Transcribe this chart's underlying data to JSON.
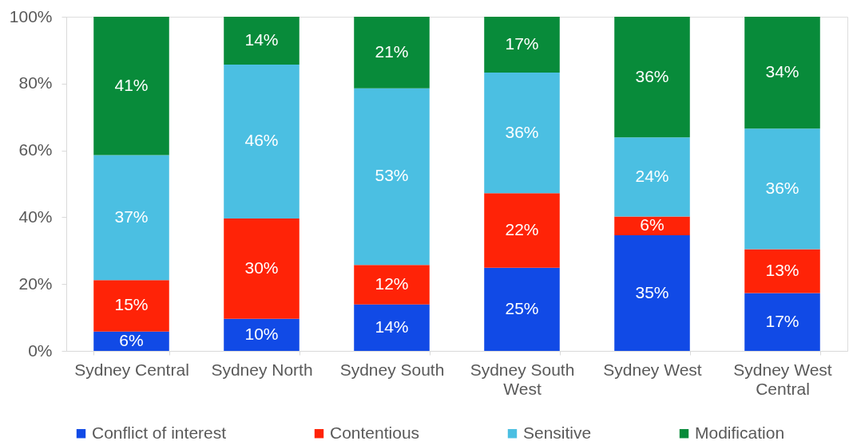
{
  "chart_data": {
    "type": "bar",
    "stacked": true,
    "categories": [
      "Sydney Central",
      "Sydney North",
      "Sydney South",
      "Sydney South West",
      "Sydney West",
      "Sydney West Central"
    ],
    "series": [
      {
        "name": "Conflict of interest",
        "color": "#114ae6",
        "values": [
          5.8,
          9.6,
          13.9,
          24.9,
          34.6,
          17.3
        ],
        "value_labels": [
          "6%",
          "10%",
          "14%",
          "25%",
          "35%",
          "17%"
        ]
      },
      {
        "name": "Contentious",
        "color": "#ff2307",
        "values": [
          15.4,
          30.0,
          11.8,
          22.3,
          5.6,
          13.1
        ],
        "value_labels": [
          "15%",
          "30%",
          "12%",
          "22%",
          "6%",
          "13%"
        ]
      },
      {
        "name": "Sensitive",
        "color": "#4bbfe2",
        "values": [
          37.4,
          46.1,
          52.9,
          36.1,
          23.7,
          36.1
        ],
        "value_labels": [
          "37%",
          "46%",
          "53%",
          "36%",
          "24%",
          "36%"
        ]
      },
      {
        "name": "Modification",
        "color": "#088b3a",
        "values": [
          41.4,
          14.3,
          21.4,
          16.7,
          36.1,
          33.5
        ],
        "value_labels": [
          "41%",
          "14%",
          "21%",
          "17%",
          "36%",
          "34%"
        ]
      }
    ],
    "ylim": [
      0,
      100
    ],
    "yticks": [
      {
        "value": 0,
        "label": "0%"
      },
      {
        "value": 20,
        "label": "20%"
      },
      {
        "value": 40,
        "label": "40%"
      },
      {
        "value": 60,
        "label": "60%"
      },
      {
        "value": 80,
        "label": "80%"
      },
      {
        "value": 100,
        "label": "100%"
      }
    ],
    "grid": false,
    "legend": "bottom"
  }
}
